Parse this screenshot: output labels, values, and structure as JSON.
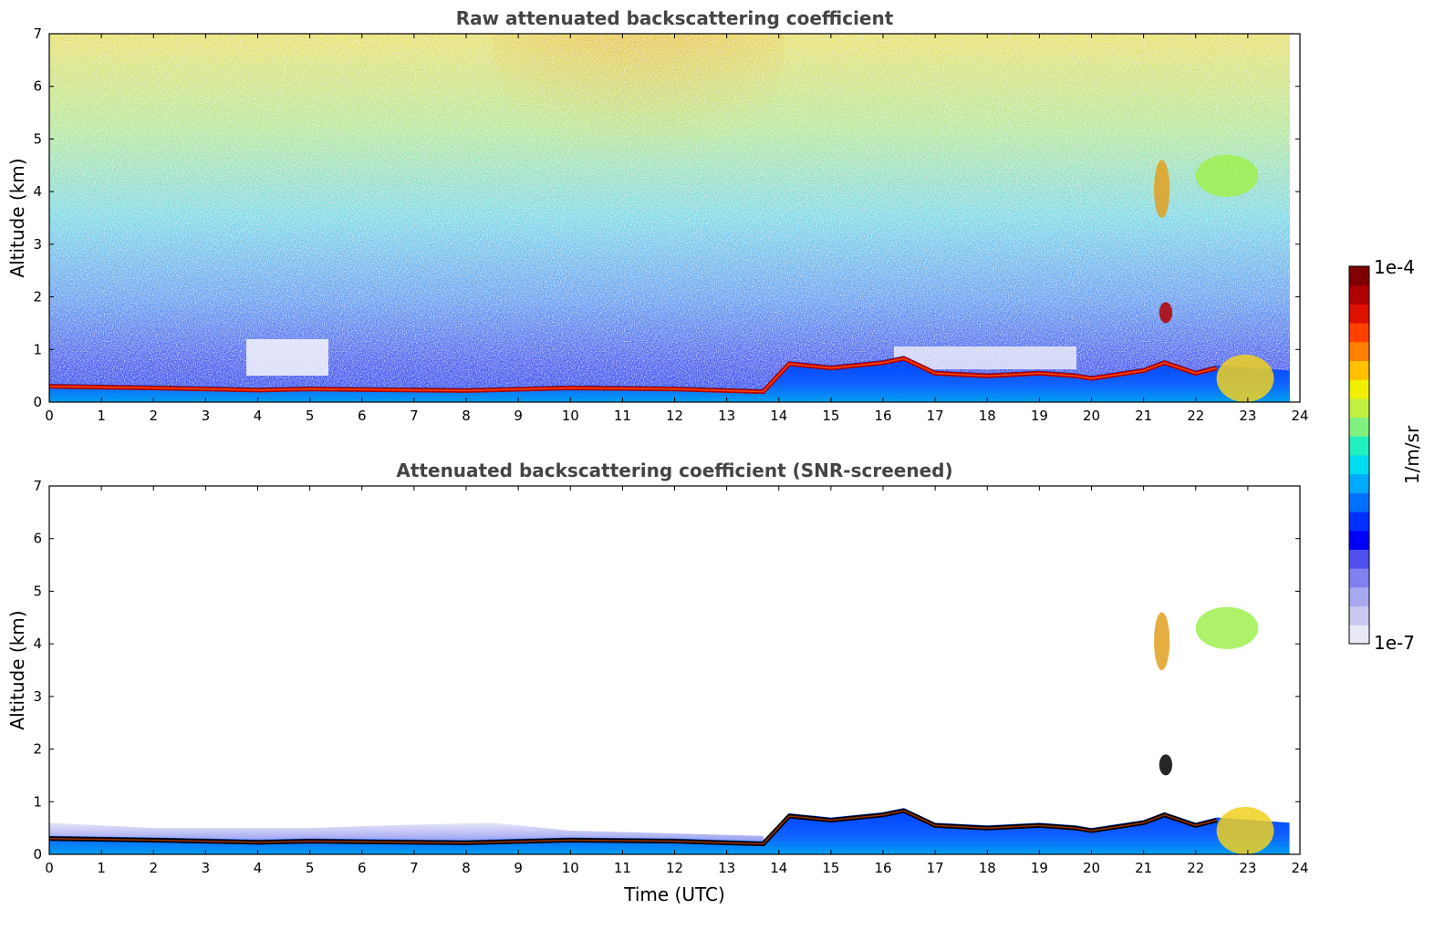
{
  "chart_data": [
    {
      "type": "heatmap",
      "title": "Raw attenuated backscattering coefficient",
      "xlabel": "",
      "ylabel": "Altitude (km)",
      "xlim": [
        0,
        24
      ],
      "ylim": [
        0,
        7
      ],
      "xticks": [
        "0",
        "1",
        "2",
        "3",
        "4",
        "5",
        "6",
        "7",
        "8",
        "9",
        "10",
        "11",
        "12",
        "13",
        "14",
        "15",
        "16",
        "17",
        "18",
        "19",
        "20",
        "21",
        "22",
        "23",
        "24"
      ],
      "yticks": [
        "0",
        "1",
        "2",
        "3",
        "4",
        "5",
        "6",
        "7"
      ],
      "data_end_time": 23.8,
      "features": {
        "boundary_layer_top_km": [
          [
            0,
            0.35
          ],
          [
            2,
            0.32
          ],
          [
            4,
            0.28
          ],
          [
            5,
            0.3
          ],
          [
            8,
            0.27
          ],
          [
            10,
            0.32
          ],
          [
            12,
            0.3
          ],
          [
            13.7,
            0.25
          ],
          [
            14.2,
            0.78
          ],
          [
            15,
            0.7
          ],
          [
            16,
            0.8
          ],
          [
            16.4,
            0.88
          ],
          [
            17,
            0.6
          ],
          [
            18,
            0.55
          ],
          [
            19,
            0.6
          ],
          [
            19.7,
            0.55
          ],
          [
            20,
            0.5
          ],
          [
            21,
            0.65
          ],
          [
            21.4,
            0.8
          ],
          [
            22,
            0.6
          ],
          [
            22.4,
            0.7
          ]
        ],
        "clouds": [
          {
            "t_start": 21.2,
            "t_end": 21.5,
            "alt_bottom_km": 3.5,
            "alt_top_km": 4.6
          },
          {
            "t_start": 22.0,
            "t_end": 23.2,
            "alt_bottom_km": 3.9,
            "alt_top_km": 4.7
          },
          {
            "t_start": 21.3,
            "t_end": 21.55,
            "alt_bottom_km": 1.5,
            "alt_top_km": 1.9
          },
          {
            "t_start": 22.4,
            "t_end": 23.5,
            "alt_bottom_km": 0.0,
            "alt_top_km": 0.9
          }
        ]
      }
    },
    {
      "type": "heatmap",
      "title": "Attenuated backscattering coefficient (SNR-screened)",
      "xlabel": "Time (UTC)",
      "ylabel": "Altitude (km)",
      "xlim": [
        0,
        24
      ],
      "ylim": [
        0,
        7
      ],
      "xticks": [
        "0",
        "1",
        "2",
        "3",
        "4",
        "5",
        "6",
        "7",
        "8",
        "9",
        "10",
        "11",
        "12",
        "13",
        "14",
        "15",
        "16",
        "17",
        "18",
        "19",
        "20",
        "21",
        "22",
        "23",
        "24"
      ],
      "yticks": [
        "0",
        "1",
        "2",
        "3",
        "4",
        "5",
        "6",
        "7"
      ],
      "data_end_time": 23.8
    }
  ],
  "colorbar": {
    "label": "1/m/sr",
    "max_label": "1e-4",
    "min_label": "1e-7",
    "colors": [
      "#e8e8f8",
      "#c8c8f0",
      "#a8a8f0",
      "#8080f0",
      "#5050f0",
      "#0000f8",
      "#0030ff",
      "#0070ff",
      "#00aaff",
      "#00dcf0",
      "#20f0c0",
      "#80f080",
      "#c0f040",
      "#f0f000",
      "#ffc000",
      "#ff8000",
      "#ff4000",
      "#e01000",
      "#b00000",
      "#800000"
    ]
  }
}
